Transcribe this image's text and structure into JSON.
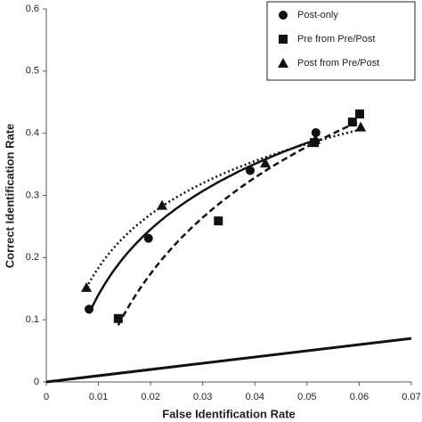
{
  "chart_data": {
    "type": "scatter",
    "x_label": "False Identification Rate",
    "y_label": "Correct Identification Rate",
    "xlim": [
      0,
      0.07
    ],
    "xticks": [
      0,
      0.01,
      0.02,
      0.03,
      0.04,
      0.05,
      0.06,
      0.07
    ],
    "ylim": [
      0,
      0.6
    ],
    "yticks": [
      0,
      0.1,
      0.2,
      0.3,
      0.4,
      0.5,
      0.6
    ],
    "chance_line": true,
    "series": [
      {
        "name": "Post-only",
        "color": "#111111",
        "marker": "circle",
        "line": "solid",
        "x": [
          0.0082,
          0.0196,
          0.0391,
          0.0517
        ],
        "values": [
          0.117,
          0.231,
          0.34,
          0.401
        ]
      },
      {
        "name": "Pre from Pre/Post",
        "color": "#111111",
        "marker": "square",
        "line": "dashed",
        "x": [
          0.0138,
          0.033,
          0.0514,
          0.0587,
          0.0601
        ],
        "values": [
          0.102,
          0.259,
          0.385,
          0.418,
          0.431
        ]
      },
      {
        "name": "Post from Pre/Post",
        "color": "#111111",
        "marker": "triangle",
        "line": "dotted",
        "x": [
          0.0077,
          0.0222,
          0.042,
          0.0516,
          0.0603
        ],
        "values": [
          0.152,
          0.284,
          0.352,
          0.39,
          0.41
        ]
      }
    ]
  }
}
